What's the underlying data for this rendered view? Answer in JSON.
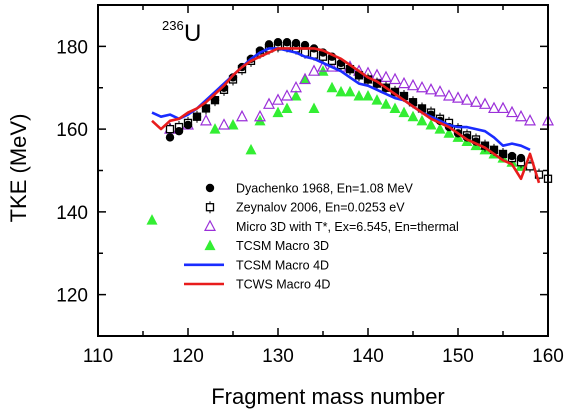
{
  "chart_data": {
    "type": "scatter",
    "title": "",
    "annotation": {
      "mass": "236",
      "element": "U"
    },
    "xlabel": "Fragment mass number",
    "ylabel": "TKE (MeV)",
    "xlim": [
      110,
      160
    ],
    "ylim": [
      110,
      190
    ],
    "xticks": [
      110,
      120,
      130,
      140,
      150,
      160
    ],
    "yticks": [
      120,
      140,
      160,
      180
    ],
    "grid": false,
    "legend_position": "bottom-center",
    "series": [
      {
        "name": "Dyachenko 1968, En=1.08 MeV",
        "marker": "filled-circle",
        "color": "#000000",
        "x": [
          118,
          119,
          120,
          121,
          122,
          123,
          124,
          125,
          126,
          127,
          128,
          129,
          130,
          131,
          132,
          133,
          134,
          135,
          136,
          137,
          138,
          139,
          140,
          141,
          142,
          143,
          144,
          145,
          146,
          147,
          148,
          149,
          150,
          151,
          152,
          153,
          154,
          155,
          156,
          157
        ],
        "y": [
          158,
          159.5,
          161,
          163,
          165,
          167,
          170,
          172.5,
          175,
          177,
          179,
          180.5,
          181,
          181,
          180.8,
          180.3,
          179.5,
          178.5,
          177.5,
          176,
          174.5,
          173,
          172,
          171,
          170,
          169,
          168,
          166.5,
          165,
          163.5,
          162,
          160.5,
          159,
          158,
          157,
          156,
          155,
          154,
          153.5,
          153
        ]
      },
      {
        "name": "Zeynalov 2006, En=0.0253 eV",
        "marker": "open-square-errorbar",
        "color": "#000000",
        "x": [
          118,
          119,
          120,
          121,
          122,
          123,
          124,
          125,
          126,
          127,
          128,
          129,
          130,
          131,
          132,
          133,
          134,
          135,
          136,
          137,
          138,
          139,
          140,
          141,
          142,
          143,
          144,
          145,
          146,
          147,
          148,
          149,
          150,
          151,
          152,
          153,
          154,
          155,
          156,
          157,
          158,
          159,
          160
        ],
        "y": [
          160,
          160.5,
          161.5,
          163,
          165,
          167,
          169.5,
          172,
          174.5,
          176.5,
          178.5,
          179.5,
          180,
          180,
          179.5,
          178.5,
          178,
          177.5,
          176.5,
          175.5,
          174.5,
          173,
          172,
          171,
          170,
          169,
          168,
          166.5,
          165,
          164,
          162.5,
          161.5,
          160,
          158.5,
          157.5,
          156,
          155,
          154,
          153,
          152,
          151,
          149,
          148
        ]
      },
      {
        "name": "Micro 3D with T*, Ex=6.545, En=thermal",
        "marker": "open-triangle",
        "color": "#9b30d9",
        "x": [
          118,
          120,
          122,
          124,
          126,
          128,
          129,
          130,
          131,
          132,
          133,
          134,
          135,
          136,
          137,
          138,
          139,
          140,
          141,
          142,
          143,
          144,
          145,
          146,
          147,
          148,
          149,
          150,
          151,
          152,
          153,
          154,
          155,
          156,
          157,
          158,
          160
        ],
        "y": [
          160,
          161,
          162,
          161,
          163,
          163,
          166,
          167,
          168,
          170,
          172,
          174,
          175,
          175,
          175,
          175,
          174,
          173.5,
          173,
          172.5,
          172,
          171,
          170.5,
          170,
          169.5,
          169,
          168,
          167.5,
          167,
          166.5,
          166,
          165,
          165,
          164,
          163,
          162,
          162
        ]
      },
      {
        "name": "TCSM Macro 3D",
        "marker": "filled-triangle",
        "color": "#33ee33",
        "x": [
          116,
          123,
          125,
          127,
          128,
          130,
          131,
          132,
          133,
          134,
          135,
          136,
          137,
          138,
          139,
          140,
          141,
          142,
          143,
          144,
          145,
          146,
          147,
          148,
          149,
          150,
          151,
          152,
          153,
          154,
          155,
          156,
          157
        ],
        "y": [
          138,
          160,
          161,
          155,
          162,
          164,
          165,
          168,
          172,
          165,
          174,
          170,
          169,
          169,
          168,
          168,
          167,
          166,
          165,
          164,
          163,
          162,
          161,
          160,
          159,
          158,
          157,
          156,
          155,
          154,
          153,
          152,
          151
        ]
      },
      {
        "name": "TCSM Macro 4D",
        "marker": "line",
        "color": "#1a2cff",
        "x": [
          116,
          117,
          118,
          119,
          120,
          121,
          122,
          123,
          124,
          125,
          126,
          127,
          128,
          129,
          130,
          131,
          132,
          133,
          134,
          135,
          136,
          137,
          138,
          139,
          140,
          141,
          142,
          143,
          144,
          145,
          146,
          147,
          148,
          149,
          150,
          151,
          152,
          153,
          154,
          155,
          156,
          157,
          158
        ],
        "y": [
          164,
          163,
          163.5,
          162.5,
          163.5,
          165,
          167,
          169,
          171,
          173,
          175,
          177,
          178.5,
          179.5,
          179.5,
          179,
          178.5,
          177.5,
          177,
          176,
          175,
          174,
          172.5,
          171,
          170.5,
          169.5,
          168.5,
          167.5,
          167,
          165.5,
          164,
          163,
          162,
          161,
          160.5,
          160.5,
          160,
          159.5,
          158,
          156,
          156.5,
          156,
          155
        ]
      },
      {
        "name": "TCWS Macro 4D",
        "marker": "line",
        "color": "#e81c1c",
        "x": [
          116,
          117,
          118,
          119,
          120,
          121,
          122,
          123,
          124,
          125,
          126,
          127,
          128,
          129,
          130,
          131,
          132,
          133,
          134,
          135,
          136,
          137,
          138,
          139,
          140,
          141,
          142,
          143,
          144,
          145,
          146,
          147,
          148,
          149,
          150,
          151,
          152,
          153,
          154,
          155,
          156,
          157,
          158,
          159
        ],
        "y": [
          162,
          160,
          162,
          162.5,
          164,
          165,
          166.5,
          168.5,
          170.5,
          173,
          175,
          176.5,
          177.5,
          178.5,
          179.5,
          179.5,
          179.5,
          179.5,
          179.5,
          179,
          178,
          177,
          175.5,
          174,
          172.5,
          171.5,
          170,
          168.5,
          167,
          165.5,
          164,
          162.5,
          161.5,
          160.5,
          159,
          157.5,
          156.5,
          155.5,
          154,
          152.5,
          151.5,
          148,
          154,
          147
        ]
      }
    ]
  }
}
